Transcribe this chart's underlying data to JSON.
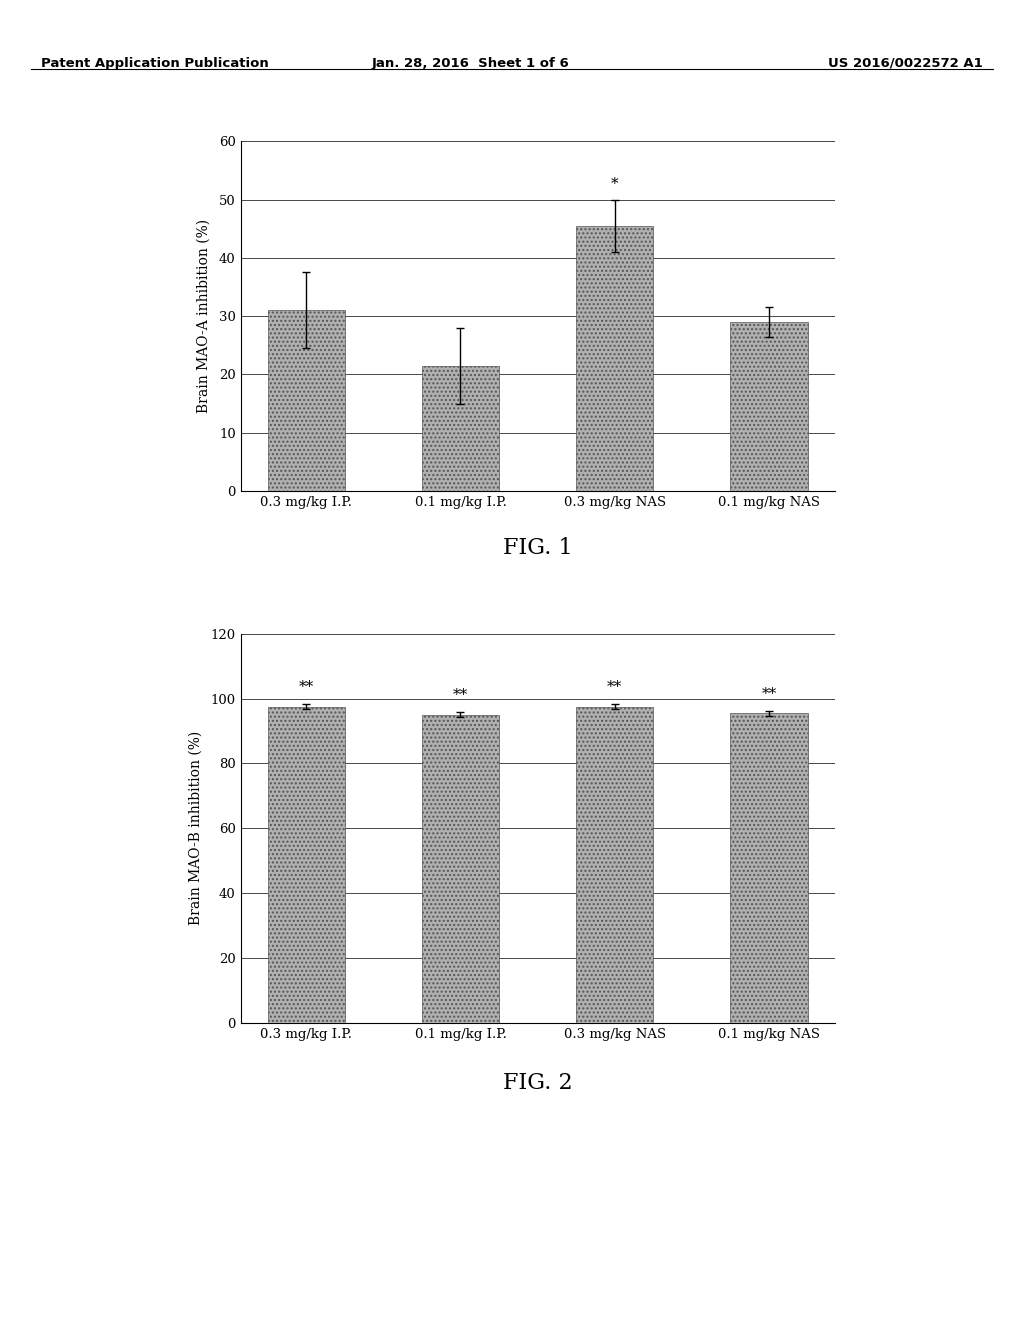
{
  "fig1": {
    "categories": [
      "0.3 mg/kg I.P.",
      "0.1 mg/kg I.P.",
      "0.3 mg/kg NAS",
      "0.1 mg/kg NAS"
    ],
    "values": [
      31.0,
      21.5,
      45.5,
      29.0
    ],
    "errors": [
      6.5,
      6.5,
      4.5,
      2.5
    ],
    "ylabel": "Brain MAO-A inhibition (%)",
    "ylim": [
      0,
      60
    ],
    "yticks": [
      0,
      10,
      20,
      30,
      40,
      50,
      60
    ],
    "annotations": [
      "",
      "",
      "*",
      ""
    ],
    "fig_label": "FIG. 1"
  },
  "fig2": {
    "categories": [
      "0.3 mg/kg I.P.",
      "0.1 mg/kg I.P.",
      "0.3 mg/kg NAS",
      "0.1 mg/kg NAS"
    ],
    "values": [
      97.5,
      95.0,
      97.5,
      95.5
    ],
    "errors": [
      0.8,
      0.8,
      0.8,
      0.8
    ],
    "ylabel": "Brain MAO-B inhibition (%)",
    "ylim": [
      0,
      120
    ],
    "yticks": [
      0,
      20,
      40,
      60,
      80,
      100,
      120
    ],
    "annotations": [
      "**",
      "**",
      "**",
      "**"
    ],
    "fig_label": "FIG. 2"
  },
  "bar_color": "#b0b0b0",
  "bar_hatch": "....",
  "header_left": "Patent Application Publication",
  "header_center": "Jan. 28, 2016  Sheet 1 of 6",
  "header_right": "US 2016/0022572 A1",
  "background_color": "#ffffff",
  "text_color": "#000000"
}
